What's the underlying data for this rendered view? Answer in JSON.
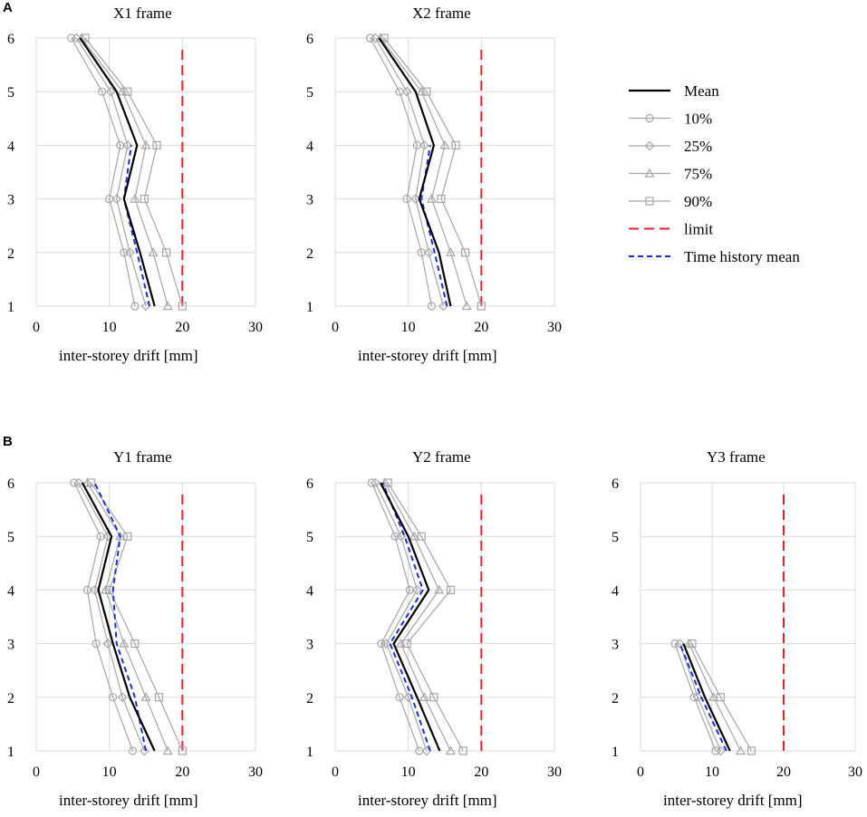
{
  "panels": [
    {
      "letter": "A"
    },
    {
      "letter": "B"
    }
  ],
  "legend": [
    {
      "label": "Mean",
      "key": "mean"
    },
    {
      "label": "10%",
      "key": "p10"
    },
    {
      "label": "25%",
      "key": "p25"
    },
    {
      "label": "75%",
      "key": "p75"
    },
    {
      "label": "90%",
      "key": "p90"
    },
    {
      "label": "limit",
      "key": "limit"
    },
    {
      "label": "Time history mean",
      "key": "th"
    }
  ],
  "styles": {
    "mean": {
      "color": "#000000",
      "marker": "none",
      "dash": "none"
    },
    "p10": {
      "color": "#a6a6a6",
      "marker": "circle",
      "dash": "none"
    },
    "p25": {
      "color": "#a6a6a6",
      "marker": "diamond",
      "dash": "none"
    },
    "p75": {
      "color": "#a6a6a6",
      "marker": "triangle",
      "dash": "none"
    },
    "p90": {
      "color": "#a6a6a6",
      "marker": "square",
      "dash": "none"
    },
    "limit": {
      "color": "#e8202a",
      "marker": "none",
      "dash": "long"
    },
    "th": {
      "color": "#1c2ee0",
      "marker": "none",
      "dash": "short"
    }
  },
  "chart_data": [
    {
      "type": "line",
      "title": "X1 frame",
      "xlabel": "inter-storey drift [mm]",
      "ylabel": "",
      "xlim": [
        0,
        30
      ],
      "ylim": [
        1,
        6
      ],
      "xticks": [
        0,
        10,
        20,
        30
      ],
      "yticks": [
        1,
        2,
        3,
        4,
        5,
        6
      ],
      "series": [
        {
          "key": "p10",
          "name": "10%",
          "points": [
            [
              13.5,
              1
            ],
            [
              12,
              2
            ],
            [
              10,
              3
            ],
            [
              11.5,
              4
            ],
            [
              9,
              5
            ],
            [
              4.8,
              6
            ]
          ]
        },
        {
          "key": "p25",
          "name": "25%",
          "points": [
            [
              15,
              1
            ],
            [
              12.8,
              2
            ],
            [
              11,
              3
            ],
            [
              12.5,
              4
            ],
            [
              10.2,
              5
            ],
            [
              5.5,
              6
            ]
          ]
        },
        {
          "key": "mean",
          "name": "Mean",
          "points": [
            [
              16.2,
              1
            ],
            [
              14.2,
              2
            ],
            [
              12,
              3
            ],
            [
              13.8,
              4
            ],
            [
              11,
              5
            ],
            [
              6,
              6
            ]
          ]
        },
        {
          "key": "p75",
          "name": "75%",
          "points": [
            [
              18,
              1
            ],
            [
              16,
              2
            ],
            [
              13.5,
              3
            ],
            [
              15,
              4
            ],
            [
              11.8,
              5
            ],
            [
              6.2,
              6
            ]
          ]
        },
        {
          "key": "p90",
          "name": "90%",
          "points": [
            [
              20,
              1
            ],
            [
              17.8,
              2
            ],
            [
              14.8,
              3
            ],
            [
              16.5,
              4
            ],
            [
              12.5,
              5
            ],
            [
              6.7,
              6
            ]
          ]
        },
        {
          "key": "th",
          "name": "Time history mean",
          "points": [
            [
              15.5,
              1
            ],
            [
              13.8,
              2
            ],
            [
              12,
              3
            ],
            [
              13,
              4
            ]
          ]
        },
        {
          "key": "limit",
          "name": "limit",
          "points": [
            [
              20,
              1
            ],
            [
              20,
              5.85
            ]
          ]
        }
      ]
    },
    {
      "type": "line",
      "title": "X2 frame",
      "xlabel": "inter-storey drift [mm]",
      "ylabel": "",
      "xlim": [
        0,
        30
      ],
      "ylim": [
        1,
        6
      ],
      "xticks": [
        0,
        10,
        20,
        30
      ],
      "yticks": [
        1,
        2,
        3,
        4,
        5,
        6
      ],
      "series": [
        {
          "key": "p10",
          "name": "10%",
          "points": [
            [
              13.2,
              1
            ],
            [
              11.8,
              2
            ],
            [
              9.8,
              3
            ],
            [
              11.2,
              4
            ],
            [
              8.8,
              5
            ],
            [
              4.8,
              6
            ]
          ]
        },
        {
          "key": "p25",
          "name": "25%",
          "points": [
            [
              14.8,
              1
            ],
            [
              12.8,
              2
            ],
            [
              11,
              3
            ],
            [
              12.2,
              4
            ],
            [
              9.8,
              5
            ],
            [
              5.5,
              6
            ]
          ]
        },
        {
          "key": "mean",
          "name": "Mean",
          "points": [
            [
              15.8,
              1
            ],
            [
              14.2,
              2
            ],
            [
              11.5,
              3
            ],
            [
              13.5,
              4
            ],
            [
              11,
              5
            ],
            [
              6,
              6
            ]
          ]
        },
        {
          "key": "p75",
          "name": "75%",
          "points": [
            [
              18,
              1
            ],
            [
              15.8,
              2
            ],
            [
              13.2,
              3
            ],
            [
              15,
              4
            ],
            [
              11.8,
              5
            ],
            [
              6.2,
              6
            ]
          ]
        },
        {
          "key": "p90",
          "name": "90%",
          "points": [
            [
              20,
              1
            ],
            [
              17.8,
              2
            ],
            [
              14.5,
              3
            ],
            [
              16.5,
              4
            ],
            [
              12.5,
              5
            ],
            [
              6.7,
              6
            ]
          ]
        },
        {
          "key": "th",
          "name": "Time history mean",
          "points": [
            [
              15.3,
              1
            ],
            [
              13.6,
              2
            ],
            [
              11.8,
              3
            ],
            [
              13,
              4
            ]
          ]
        },
        {
          "key": "limit",
          "name": "limit",
          "points": [
            [
              20,
              1
            ],
            [
              20,
              5.85
            ]
          ]
        }
      ]
    },
    {
      "type": "line",
      "title": "Y1 frame",
      "xlabel": "inter-storey drift [mm]",
      "ylabel": "",
      "xlim": [
        0,
        30
      ],
      "ylim": [
        1,
        6
      ],
      "xticks": [
        0,
        10,
        20,
        30
      ],
      "yticks": [
        1,
        2,
        3,
        4,
        5,
        6
      ],
      "series": [
        {
          "key": "p10",
          "name": "10%",
          "points": [
            [
              13.2,
              1
            ],
            [
              10.5,
              2
            ],
            [
              8.2,
              3
            ],
            [
              7,
              4
            ],
            [
              8.8,
              5
            ],
            [
              5.2,
              6
            ]
          ]
        },
        {
          "key": "p25",
          "name": "25%",
          "points": [
            [
              14.8,
              1
            ],
            [
              11.8,
              2
            ],
            [
              9.8,
              3
            ],
            [
              8,
              4
            ],
            [
              9.8,
              5
            ],
            [
              5.8,
              6
            ]
          ]
        },
        {
          "key": "mean",
          "name": "Mean",
          "points": [
            [
              16.2,
              1
            ],
            [
              12.8,
              2
            ],
            [
              10.5,
              3
            ],
            [
              8.5,
              4
            ],
            [
              10.3,
              5
            ],
            [
              6.3,
              6
            ]
          ]
        },
        {
          "key": "p75",
          "name": "75%",
          "points": [
            [
              18,
              1
            ],
            [
              15,
              2
            ],
            [
              12,
              3
            ],
            [
              9.5,
              4
            ],
            [
              11.5,
              5
            ],
            [
              7,
              6
            ]
          ]
        },
        {
          "key": "p90",
          "name": "90%",
          "points": [
            [
              20,
              1
            ],
            [
              16.8,
              2
            ],
            [
              13.5,
              3
            ],
            [
              10,
              4
            ],
            [
              12.5,
              5
            ],
            [
              7.5,
              6
            ]
          ]
        },
        {
          "key": "th",
          "name": "Time history mean",
          "points": [
            [
              15,
              1
            ],
            [
              13.5,
              2
            ],
            [
              11,
              3
            ],
            [
              10.5,
              4
            ],
            [
              11.5,
              5
            ],
            [
              8,
              6
            ]
          ]
        },
        {
          "key": "limit",
          "name": "limit",
          "points": [
            [
              20,
              1
            ],
            [
              20,
              5.85
            ]
          ]
        }
      ]
    },
    {
      "type": "line",
      "title": "Y2 frame",
      "xlabel": "inter-storey drift [mm]",
      "ylabel": "",
      "xlim": [
        0,
        30
      ],
      "ylim": [
        1,
        6
      ],
      "xticks": [
        0,
        10,
        20,
        30
      ],
      "yticks": [
        1,
        2,
        3,
        4,
        5,
        6
      ],
      "series": [
        {
          "key": "p10",
          "name": "10%",
          "points": [
            [
              11.5,
              1
            ],
            [
              8.8,
              2
            ],
            [
              6.3,
              3
            ],
            [
              10.2,
              4
            ],
            [
              8.2,
              5
            ],
            [
              5,
              6
            ]
          ]
        },
        {
          "key": "p25",
          "name": "25%",
          "points": [
            [
              12.5,
              1
            ],
            [
              10,
              2
            ],
            [
              7,
              3
            ],
            [
              11.2,
              4
            ],
            [
              9,
              5
            ],
            [
              5.5,
              6
            ]
          ]
        },
        {
          "key": "mean",
          "name": "Mean",
          "points": [
            [
              14.3,
              1
            ],
            [
              11.2,
              2
            ],
            [
              8,
              3
            ],
            [
              12.8,
              4
            ],
            [
              10,
              5
            ],
            [
              6.2,
              6
            ]
          ]
        },
        {
          "key": "p75",
          "name": "75%",
          "points": [
            [
              15.8,
              1
            ],
            [
              12.2,
              2
            ],
            [
              9,
              3
            ],
            [
              14.2,
              4
            ],
            [
              10.8,
              5
            ],
            [
              6.8,
              6
            ]
          ]
        },
        {
          "key": "p90",
          "name": "90%",
          "points": [
            [
              17.5,
              1
            ],
            [
              13.5,
              2
            ],
            [
              9.8,
              3
            ],
            [
              15.8,
              4
            ],
            [
              11.8,
              5
            ],
            [
              7.2,
              6
            ]
          ]
        },
        {
          "key": "th",
          "name": "Time history mean",
          "points": [
            [
              13,
              1
            ],
            [
              10.5,
              2
            ],
            [
              7.5,
              3
            ],
            [
              12,
              4
            ],
            [
              9.5,
              5
            ],
            [
              6.5,
              6
            ]
          ]
        },
        {
          "key": "limit",
          "name": "limit",
          "points": [
            [
              20,
              1
            ],
            [
              20,
              5.85
            ]
          ]
        }
      ]
    },
    {
      "type": "line",
      "title": "Y3 frame",
      "xlabel": "inter-storey drift [mm]",
      "ylabel": "",
      "xlim": [
        0,
        30
      ],
      "ylim": [
        1,
        6
      ],
      "xticks": [
        0,
        10,
        20,
        30
      ],
      "yticks": [
        1,
        2,
        3,
        4,
        5,
        6
      ],
      "series": [
        {
          "key": "p10",
          "name": "10%",
          "points": [
            [
              10.5,
              1
            ],
            [
              7.5,
              2
            ],
            [
              4.8,
              3
            ]
          ]
        },
        {
          "key": "p25",
          "name": "25%",
          "points": [
            [
              11.2,
              1
            ],
            [
              8,
              2
            ],
            [
              5.5,
              3
            ]
          ]
        },
        {
          "key": "mean",
          "name": "Mean",
          "points": [
            [
              12.5,
              1
            ],
            [
              9,
              2
            ],
            [
              6,
              3
            ]
          ]
        },
        {
          "key": "p75",
          "name": "75%",
          "points": [
            [
              14,
              1
            ],
            [
              10.2,
              2
            ],
            [
              6.8,
              3
            ]
          ]
        },
        {
          "key": "p90",
          "name": "90%",
          "points": [
            [
              15.5,
              1
            ],
            [
              11.2,
              2
            ],
            [
              7.2,
              3
            ]
          ]
        },
        {
          "key": "th",
          "name": "Time history mean",
          "points": [
            [
              12,
              1
            ],
            [
              8.5,
              2
            ],
            [
              5.5,
              3
            ]
          ]
        },
        {
          "key": "limit",
          "name": "limit",
          "points": [
            [
              20,
              1
            ],
            [
              20,
              5.85
            ]
          ]
        }
      ]
    }
  ]
}
